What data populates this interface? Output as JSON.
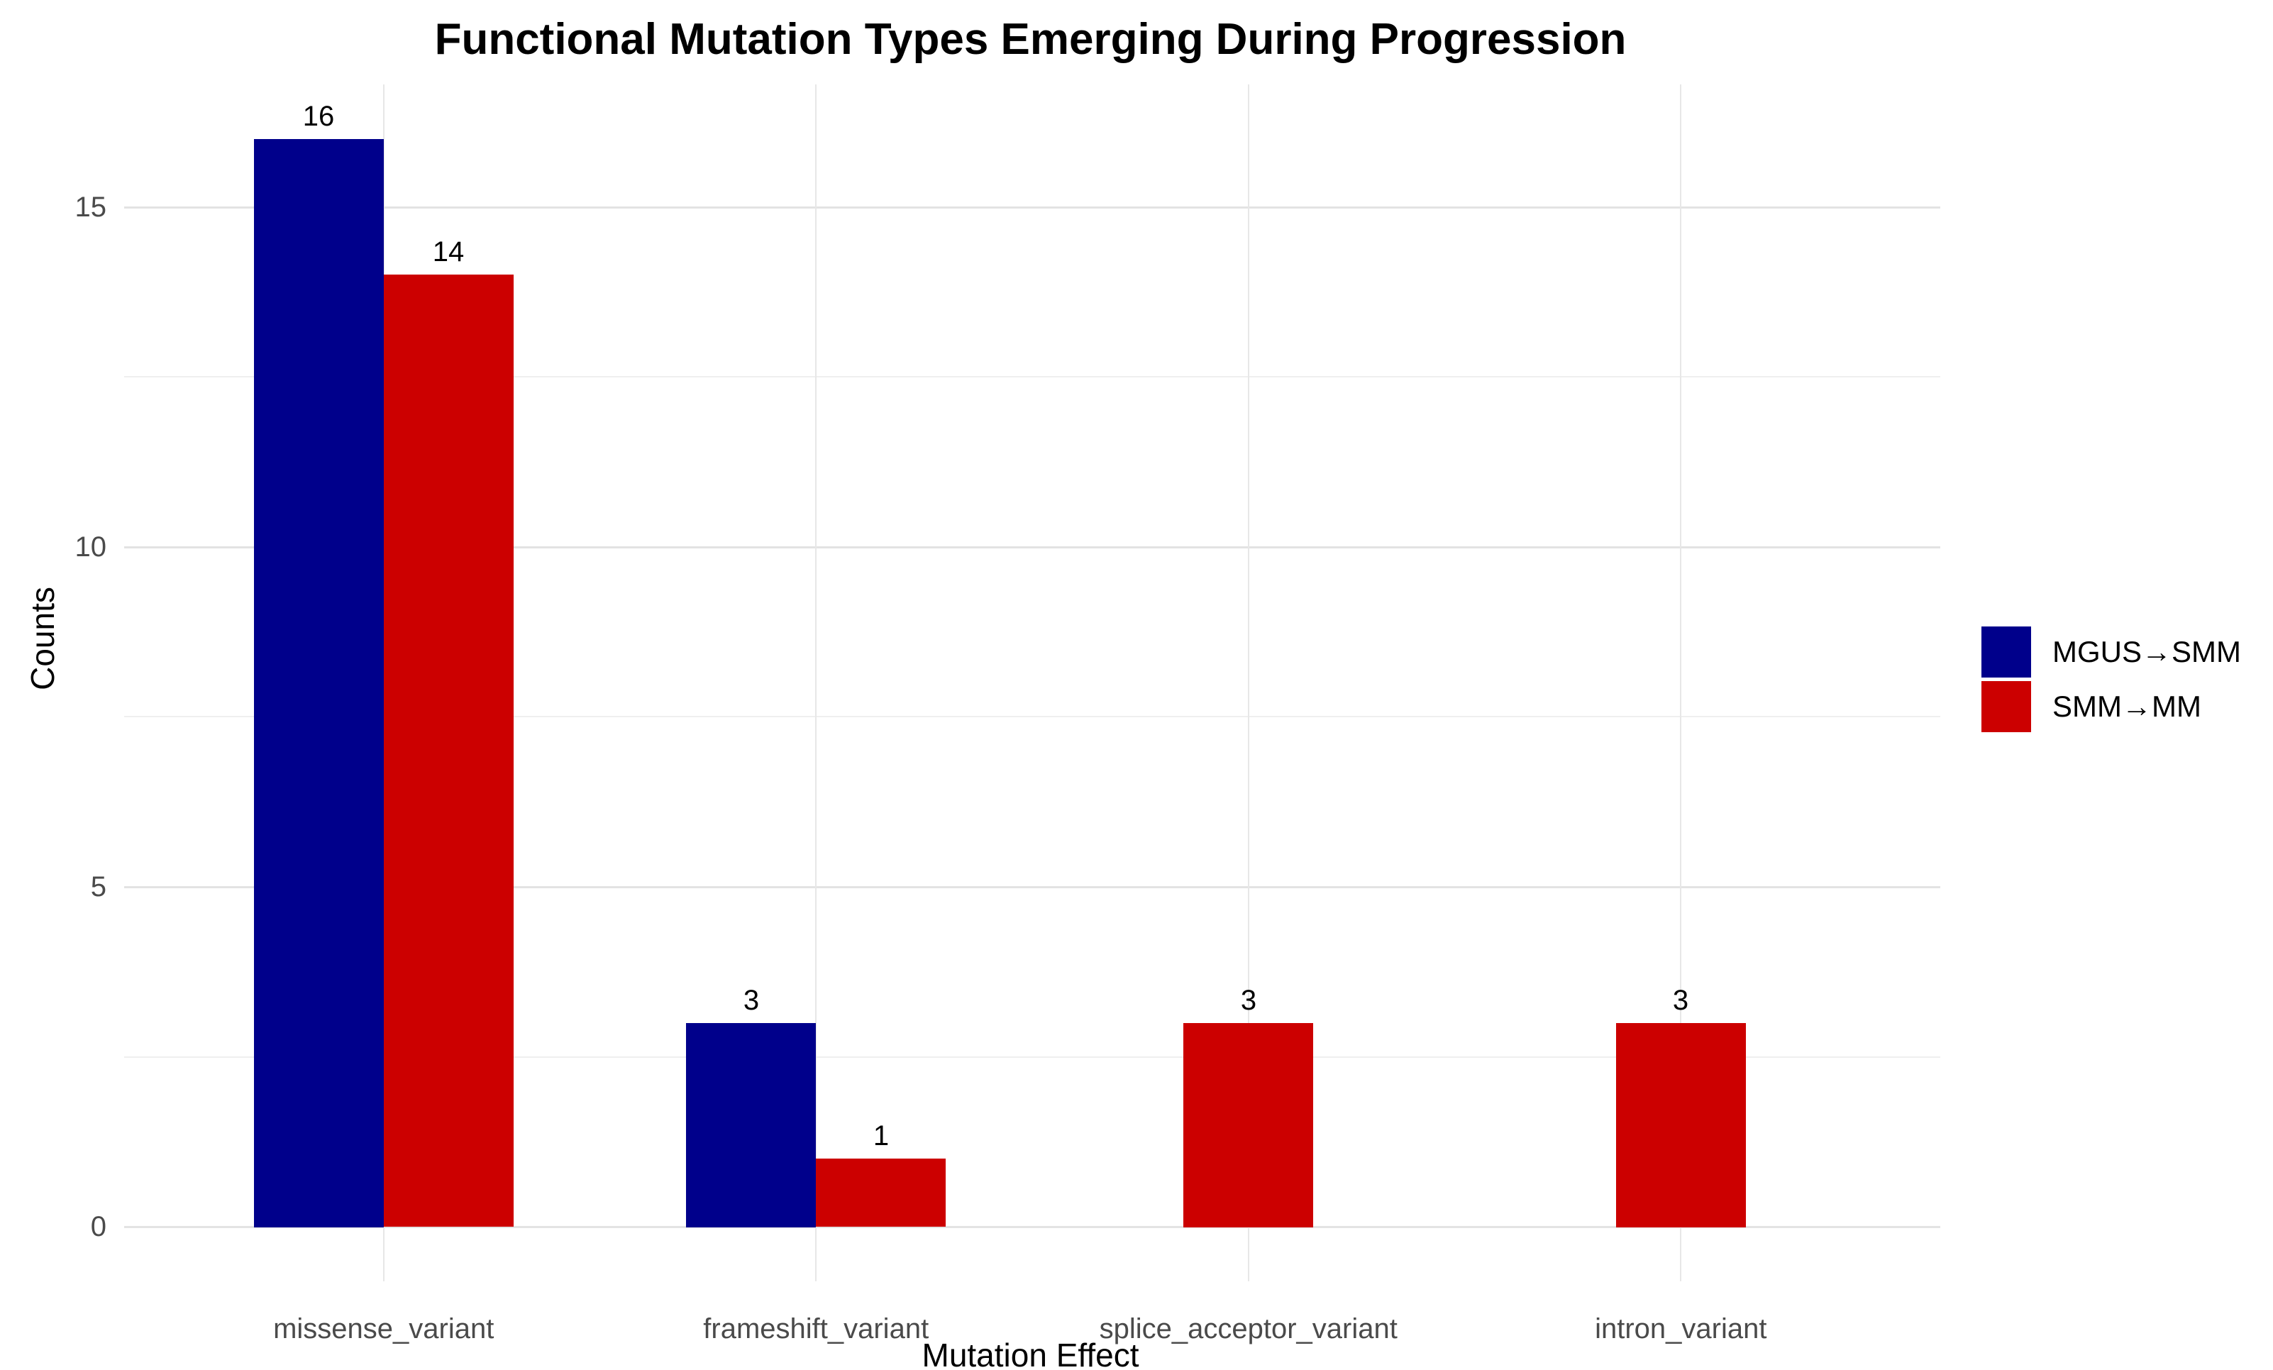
{
  "chart_data": {
    "type": "bar",
    "title": "Functional Mutation Types Emerging During Progression",
    "xlabel": "Mutation Effect",
    "ylabel": "Counts",
    "categories": [
      "missense_variant",
      "frameshift_variant",
      "splice_acceptor_variant",
      "intron_variant"
    ],
    "series": [
      {
        "name": "MGUS→SMM",
        "color": "#00008B",
        "values": [
          16,
          3,
          0,
          0
        ]
      },
      {
        "name": "SMM→MM",
        "color": "#CC0000",
        "values": [
          14,
          1,
          3,
          3
        ]
      }
    ],
    "bar_value_labels": [
      {
        "category": "missense_variant",
        "series": "MGUS→SMM",
        "label": "16"
      },
      {
        "category": "missense_variant",
        "series": "SMM→MM",
        "label": "14"
      },
      {
        "category": "frameshift_variant",
        "series": "MGUS→SMM",
        "label": "3"
      },
      {
        "category": "frameshift_variant",
        "series": "SMM→MM",
        "label": "1"
      },
      {
        "category": "splice_acceptor_variant",
        "series": "SMM→MM",
        "label": "3"
      },
      {
        "category": "intron_variant",
        "series": "SMM→MM",
        "label": "3"
      }
    ],
    "yticks_major": [
      0,
      5,
      10,
      15
    ],
    "yticks_minor": [
      2.5,
      7.5,
      12.5
    ],
    "ylim": [
      -0.8,
      16.8
    ],
    "grid": "light-gray horizontal major+minor, vertical at category centers",
    "legend_position": "center-right"
  }
}
